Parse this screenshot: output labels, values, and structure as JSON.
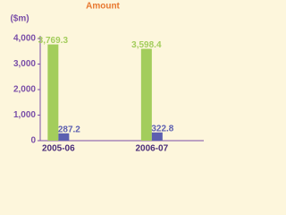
{
  "chart_data": {
    "type": "bar",
    "title": "Amount",
    "y_label": "($m)",
    "categories": [
      "2005-06",
      "2006-07"
    ],
    "series": [
      {
        "color": "#a3cd5c",
        "values": [
          3769.3,
          3598.4
        ],
        "value_labels": [
          "3,769.3",
          "3,598.4"
        ]
      },
      {
        "color": "#5c5fb0",
        "values": [
          287.2,
          322.8
        ],
        "value_labels": [
          "287.2",
          "322.8"
        ]
      }
    ],
    "ylim": [
      0,
      4000
    ],
    "yticks": [
      0,
      {
        "value": 1000,
        "label": "1,000"
      },
      {
        "value": 2000,
        "label": "2,000"
      },
      {
        "value": 3000,
        "label": "3,000"
      },
      {
        "value": 4000,
        "label": "4,000"
      }
    ],
    "grid": false
  }
}
